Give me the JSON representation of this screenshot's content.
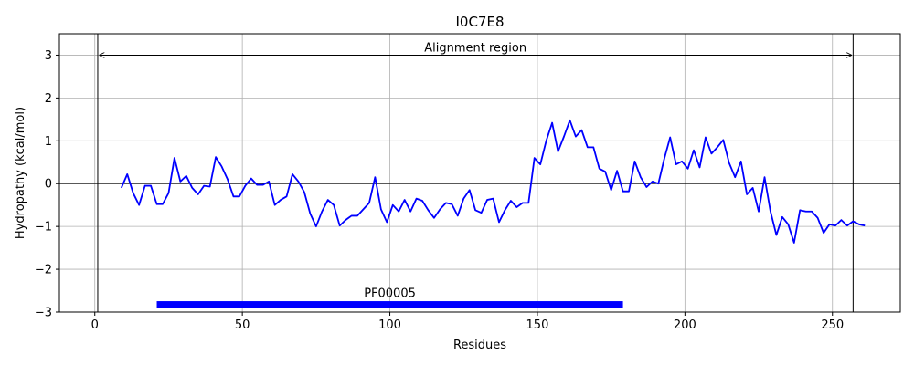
{
  "chart_data": {
    "type": "line",
    "title": "I0C7E8",
    "xlabel": "Residues",
    "ylabel": "Hydropathy (kcal/mol)",
    "xlim": [
      -12,
      273
    ],
    "ylim": [
      -3,
      3.5
    ],
    "x_ticks": [
      0,
      50,
      100,
      150,
      200,
      250
    ],
    "y_ticks": [
      -3,
      -2,
      -1,
      0,
      1,
      2,
      3
    ],
    "y_tick_labels": [
      "−3",
      "−2",
      "−1",
      "0",
      "1",
      "2",
      "3"
    ],
    "grid": true,
    "line_color": "#0000ff",
    "series": [
      {
        "x": [
          9,
          11,
          13,
          15,
          17,
          19,
          21,
          23,
          25,
          27,
          29,
          31,
          33,
          35,
          37,
          39,
          41,
          43,
          45,
          47,
          49,
          51,
          53,
          55,
          57,
          59,
          61,
          63,
          65,
          67,
          69,
          71,
          73,
          75,
          77,
          79,
          81,
          83,
          85,
          87,
          89,
          91,
          93,
          95,
          97,
          99,
          101,
          103,
          105,
          107,
          109,
          111,
          113,
          115,
          117,
          119,
          121,
          123,
          125,
          127,
          129,
          131,
          133,
          135,
          137,
          139,
          141,
          143,
          145,
          147,
          149,
          151,
          153,
          155,
          157,
          159,
          161,
          163,
          165,
          167,
          169,
          171,
          173,
          175,
          177,
          179,
          181,
          183,
          185,
          187,
          189,
          191,
          193,
          195,
          197,
          199,
          201,
          203,
          205,
          207,
          209,
          211,
          213,
          215,
          217,
          219,
          221,
          223,
          225,
          227,
          229,
          231,
          233,
          235,
          237,
          239,
          241,
          243,
          245,
          247,
          249,
          251,
          253,
          255,
          257,
          259,
          261
        ],
        "y": [
          -0.1,
          0.22,
          -0.22,
          -0.5,
          -0.05,
          -0.05,
          -0.48,
          -0.48,
          -0.22,
          0.6,
          0.05,
          0.18,
          -0.1,
          -0.25,
          -0.05,
          -0.07,
          0.62,
          0.4,
          0.1,
          -0.3,
          -0.3,
          -0.05,
          0.12,
          -0.03,
          -0.03,
          0.05,
          -0.5,
          -0.38,
          -0.3,
          0.22,
          0.05,
          -0.2,
          -0.7,
          -1.0,
          -0.65,
          -0.38,
          -0.5,
          -0.98,
          -0.85,
          -0.75,
          -0.75,
          -0.6,
          -0.45,
          0.15,
          -0.6,
          -0.9,
          -0.5,
          -0.65,
          -0.38,
          -0.65,
          -0.35,
          -0.4,
          -0.62,
          -0.8,
          -0.6,
          -0.45,
          -0.48,
          -0.75,
          -0.35,
          -0.15,
          -0.62,
          -0.68,
          -0.38,
          -0.35,
          -0.9,
          -0.62,
          -0.4,
          -0.55,
          -0.45,
          -0.45,
          0.6,
          0.45,
          1.0,
          1.42,
          0.75,
          1.1,
          1.48,
          1.1,
          1.25,
          0.85,
          0.85,
          0.35,
          0.28,
          -0.15,
          0.3,
          -0.18,
          -0.18,
          0.52,
          0.15,
          -0.08,
          0.05,
          0.0,
          0.58,
          1.08,
          0.45,
          0.52,
          0.35,
          0.78,
          0.38,
          1.08,
          0.7,
          0.85,
          1.02,
          0.48,
          0.15,
          0.52,
          -0.25,
          -0.1,
          -0.65,
          0.15,
          -0.65,
          -1.2,
          -0.78,
          -0.95,
          -1.38,
          -0.62,
          -0.65,
          -0.65,
          -0.8,
          -1.15,
          -0.95,
          -0.98,
          -0.85,
          -0.98,
          -0.88,
          -0.95,
          -0.98
        ]
      }
    ],
    "vlines": [
      1,
      257
    ],
    "hlines": [
      0
    ],
    "annotations": [
      {
        "text": "Alignment region",
        "x_center": 129,
        "y": 3.0,
        "arrow_from": 1,
        "arrow_to": 257
      },
      {
        "text": "PF00005",
        "x_start": 21,
        "x_end": 179,
        "y": -2.82,
        "color": "#0000ff"
      }
    ]
  }
}
